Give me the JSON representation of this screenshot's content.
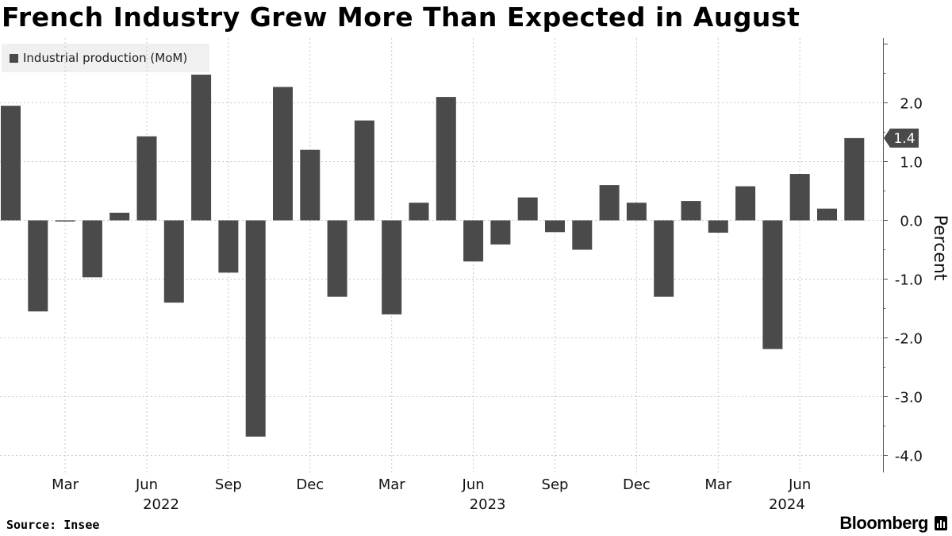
{
  "title": "French Industry Grew More Than Expected in August",
  "source": "Source: Insee",
  "brand": "Bloomberg",
  "colors": {
    "bar": "#4a4a4a",
    "grid": "#c8c8c8",
    "axis": "#555555",
    "callout_bg": "#4a4a4a"
  },
  "chart_data": {
    "type": "bar",
    "legend": {
      "position": "top-left",
      "entries": [
        "Industrial production (MoM)"
      ]
    },
    "xlabel": "",
    "ylabel": "Percent",
    "ylim": [
      -4.3,
      3.0
    ],
    "y_ticks": [
      2.0,
      1.0,
      0.0,
      -1.0,
      -2.0,
      -3.0,
      -4.0
    ],
    "y_tick_labels": [
      "2.0",
      "1.0",
      "0.0",
      "-1.0",
      "-2.0",
      "-3.0",
      "-4.0"
    ],
    "grid": true,
    "categories": [
      "2022-01",
      "2022-02",
      "2022-03",
      "2022-04",
      "2022-05",
      "2022-06",
      "2022-07",
      "2022-08",
      "2022-09",
      "2022-10",
      "2022-11",
      "2022-12",
      "2023-01",
      "2023-02",
      "2023-03",
      "2023-04",
      "2023-05",
      "2023-06",
      "2023-07",
      "2023-08",
      "2023-09",
      "2023-10",
      "2023-11",
      "2023-12",
      "2024-01",
      "2024-02",
      "2024-03",
      "2024-04",
      "2024-05",
      "2024-06",
      "2024-07",
      "2024-08"
    ],
    "series": [
      {
        "name": "Industrial production (MoM)",
        "values": [
          1.95,
          -1.55,
          -0.02,
          -0.97,
          0.13,
          1.43,
          -1.4,
          2.48,
          -0.89,
          -3.68,
          2.27,
          1.2,
          -1.3,
          1.7,
          -1.6,
          0.3,
          2.1,
          -0.7,
          -0.41,
          0.39,
          -0.2,
          -0.5,
          0.6,
          0.3,
          -1.3,
          0.33,
          -0.21,
          0.58,
          -2.19,
          0.79,
          0.2,
          1.4
        ]
      }
    ],
    "x_ticks": [
      {
        "category": "2022-03",
        "label": "Mar"
      },
      {
        "category": "2022-06",
        "label": "Jun"
      },
      {
        "category": "2022-09",
        "label": "Sep"
      },
      {
        "category": "2022-12",
        "label": "Dec"
      },
      {
        "category": "2023-03",
        "label": "Mar"
      },
      {
        "category": "2023-06",
        "label": "Jun"
      },
      {
        "category": "2023-09",
        "label": "Sep"
      },
      {
        "category": "2023-12",
        "label": "Dec"
      },
      {
        "category": "2024-03",
        "label": "Mar"
      },
      {
        "category": "2024-06",
        "label": "Jun"
      }
    ],
    "year_labels": [
      {
        "category": "2022-06",
        "label": "2022"
      },
      {
        "category": "2023-06",
        "label": "2023"
      },
      {
        "category": "2024-05",
        "label": "2024"
      }
    ],
    "last_value_label": "1.4"
  }
}
